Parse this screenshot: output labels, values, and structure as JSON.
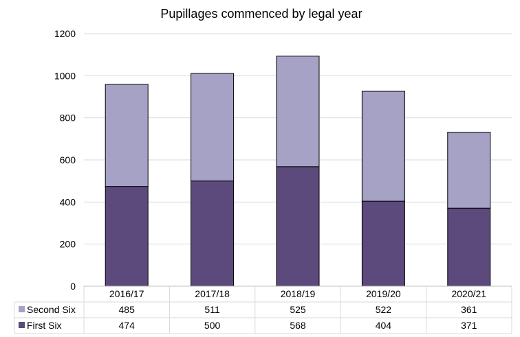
{
  "chart_data": {
    "type": "bar",
    "stacked": true,
    "title": "Pupillages commenced by legal year",
    "categories": [
      "2016/17",
      "2017/18",
      "2018/19",
      "2019/20",
      "2020/21"
    ],
    "series": [
      {
        "name": "First Six",
        "values": [
          474,
          500,
          568,
          404,
          371
        ],
        "color": "#5c4a7d"
      },
      {
        "name": "Second Six",
        "values": [
          485,
          511,
          525,
          522,
          361
        ],
        "color": "#a6a2c5"
      }
    ],
    "ylim": [
      0,
      1200
    ],
    "yticks": [
      0,
      200,
      400,
      600,
      800,
      1000,
      1200
    ],
    "grid": true,
    "legend": "data-table-below"
  }
}
